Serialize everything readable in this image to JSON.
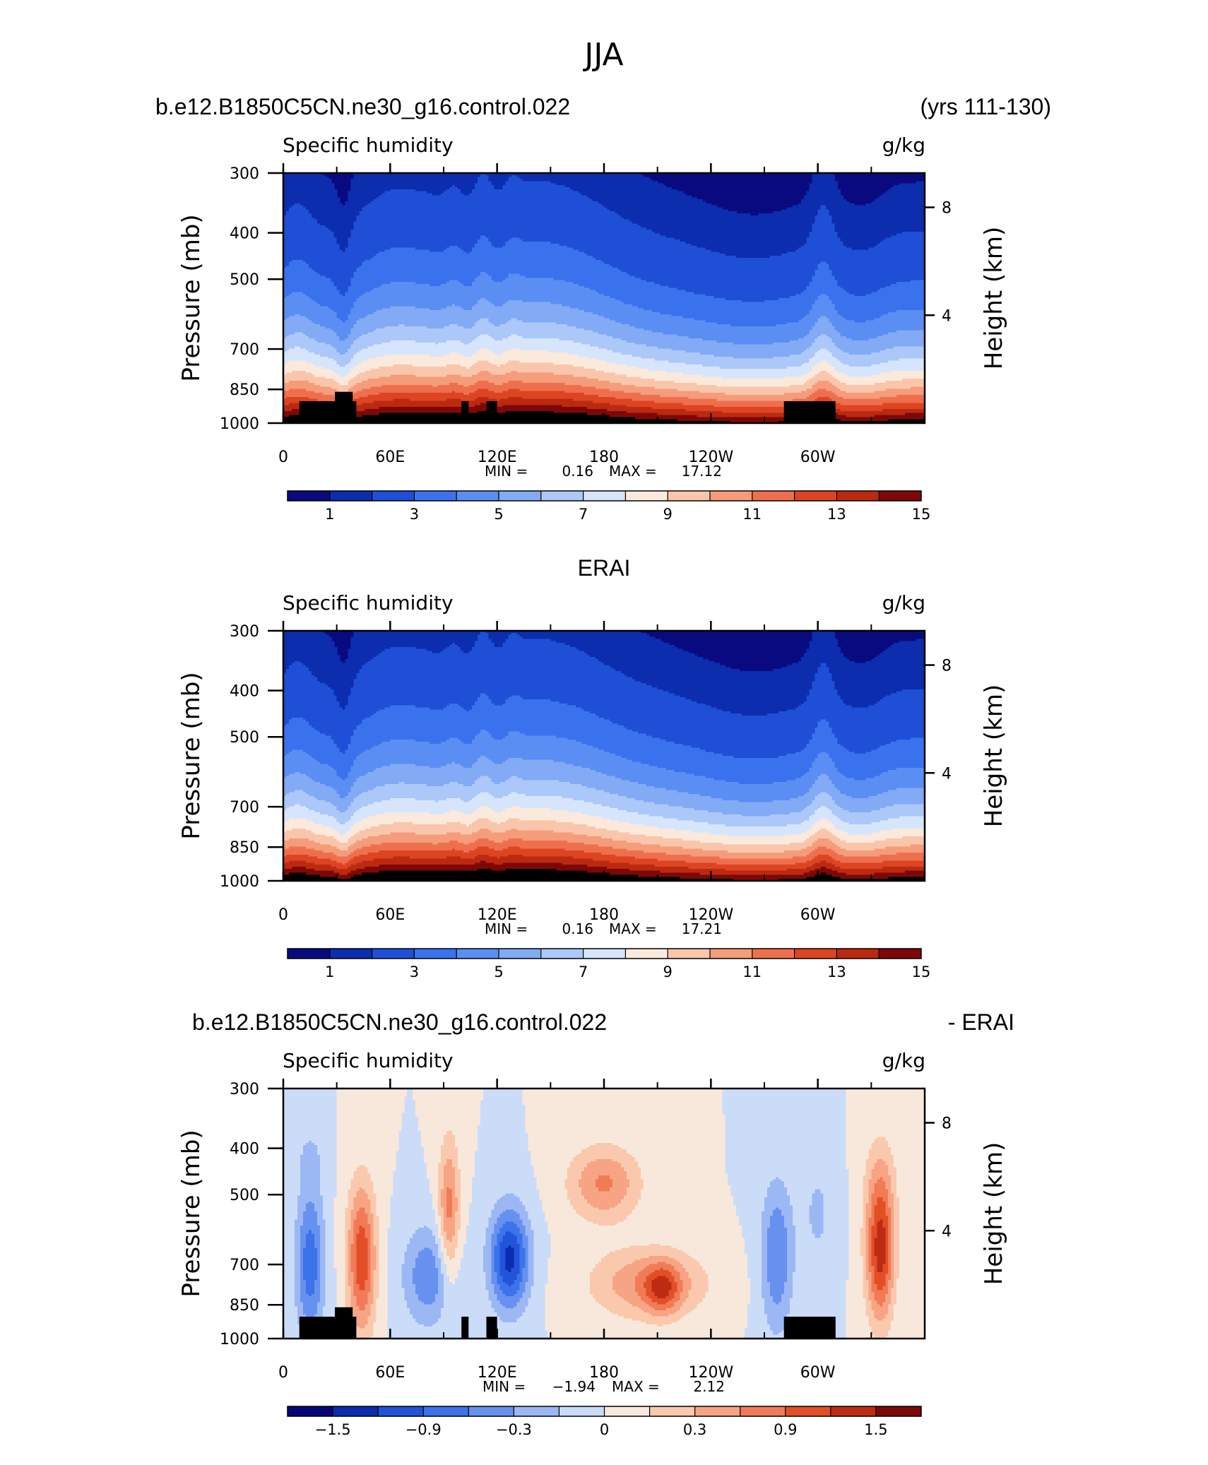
{
  "page": {
    "season": "JJA"
  },
  "palettes": {
    "humidity": [
      "#0a0a80",
      "#0b2dae",
      "#1e4fd6",
      "#3a72ee",
      "#5b8ef2",
      "#82aaf5",
      "#acc8f8",
      "#d6e5fb",
      "#fbe9dc",
      "#f9c6ab",
      "#f59c7a",
      "#ee6f4e",
      "#dd4422",
      "#bb2a10",
      "#7e0808"
    ],
    "difference": [
      "#06067a",
      "#0b2cb0",
      "#2253d8",
      "#3a73ea",
      "#6791ef",
      "#9bb7f4",
      "#cbdcf9",
      "#f8e8dc",
      "#fac9ad",
      "#f7a484",
      "#f17b57",
      "#e24f27",
      "#bd2c12",
      "#7e0808"
    ]
  },
  "chart_data": [
    {
      "id": "model",
      "type": "heatmap",
      "title": "b.e12.B1850C5CN.ne30_g16.control.022",
      "title_right": "(yrs 111-130)",
      "subtitle_left": "Specific humidity",
      "subtitle_right": "g/kg",
      "ylabel": "Pressure (mb)",
      "ylabel_right": "Height (km)",
      "x_ticks": [
        "0",
        "60E",
        "120E",
        "180",
        "120W",
        "60W"
      ],
      "y_ticks": [
        "300",
        "400",
        "500",
        "700",
        "850",
        "1000"
      ],
      "y_ticks_right": [
        "8",
        "4"
      ],
      "x_range": [
        0,
        360
      ],
      "ylim": [
        1000,
        300
      ],
      "stats": {
        "min_label": "MIN =",
        "min": "0.16",
        "max_label": "MAX =",
        "max": "17.12"
      },
      "colorbar": {
        "labels": [
          "1",
          "3",
          "5",
          "7",
          "9",
          "11",
          "13",
          "15"
        ],
        "palette": "humidity"
      },
      "levels": [
        0.5,
        1,
        2,
        3,
        4,
        5,
        6,
        7,
        8,
        9,
        10,
        11,
        12,
        13,
        14
      ],
      "field": "model",
      "terrain": true
    },
    {
      "id": "obs",
      "type": "heatmap",
      "title": "ERAI",
      "subtitle_left": "Specific humidity",
      "subtitle_right": "g/kg",
      "ylabel": "Pressure (mb)",
      "ylabel_right": "Height (km)",
      "x_ticks": [
        "0",
        "60E",
        "120E",
        "180",
        "120W",
        "60W"
      ],
      "y_ticks": [
        "300",
        "400",
        "500",
        "700",
        "850",
        "1000"
      ],
      "y_ticks_right": [
        "8",
        "4"
      ],
      "x_range": [
        0,
        360
      ],
      "ylim": [
        1000,
        300
      ],
      "stats": {
        "min_label": "MIN =",
        "min": "0.16",
        "max_label": "MAX =",
        "max": "17.21"
      },
      "colorbar": {
        "labels": [
          "1",
          "3",
          "5",
          "7",
          "9",
          "11",
          "13",
          "15"
        ],
        "palette": "humidity"
      },
      "levels": [
        0.5,
        1,
        2,
        3,
        4,
        5,
        6,
        7,
        8,
        9,
        10,
        11,
        12,
        13,
        14
      ],
      "field": "obs",
      "terrain": false
    },
    {
      "id": "diff",
      "type": "heatmap",
      "title": "b.e12.B1850C5CN.ne30_g16.control.022",
      "title_right": "- ERAI",
      "subtitle_left": "Specific humidity",
      "subtitle_right": "g/kg",
      "ylabel": "Pressure (mb)",
      "ylabel_right": "Height (km)",
      "x_ticks": [
        "0",
        "60E",
        "120E",
        "180",
        "120W",
        "60W"
      ],
      "y_ticks": [
        "300",
        "400",
        "500",
        "700",
        "850",
        "1000"
      ],
      "y_ticks_right": [
        "8",
        "4"
      ],
      "x_range": [
        0,
        360
      ],
      "ylim": [
        1000,
        300
      ],
      "stats": {
        "min_label": "MIN =",
        "min": "−1.94",
        "max_label": "MAX =",
        "max": "2.12"
      },
      "colorbar": {
        "labels": [
          "−1.5",
          "−0.9",
          "−0.3",
          "0",
          "0.3",
          "0.9",
          "1.5"
        ],
        "palette": "difference"
      },
      "levels": [
        -1.8,
        -1.5,
        -1.2,
        -0.9,
        -0.6,
        -0.3,
        0,
        0.3,
        0.6,
        0.9,
        1.2,
        1.5,
        1.8
      ],
      "field": "diff",
      "terrain": true
    }
  ]
}
